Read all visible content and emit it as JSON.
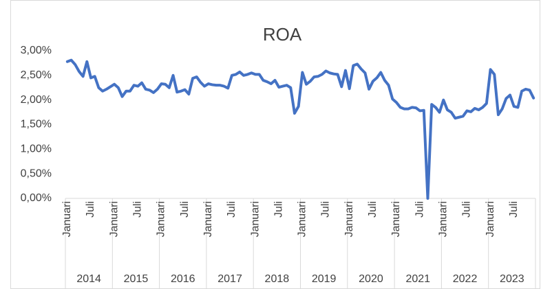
{
  "chart_data": {
    "type": "line",
    "title": "ROA",
    "categories": [
      "Januari",
      null,
      null,
      null,
      null,
      null,
      "Juli",
      null,
      null,
      null,
      null,
      null,
      "Januari",
      null,
      null,
      null,
      null,
      null,
      "Juli",
      null,
      null,
      null,
      null,
      null,
      "Januari",
      null,
      null,
      null,
      null,
      null,
      "Juli",
      null,
      null,
      null,
      null,
      null,
      "Januari",
      null,
      null,
      null,
      null,
      null,
      "Juli",
      null,
      null,
      null,
      null,
      null,
      "Januari",
      null,
      null,
      null,
      null,
      null,
      "Juli",
      null,
      null,
      null,
      null,
      null,
      "Januari",
      null,
      null,
      null,
      null,
      null,
      "Juli",
      null,
      null,
      null,
      null,
      null,
      "Januari",
      null,
      null,
      null,
      null,
      null,
      "Juli",
      null,
      null,
      null,
      null,
      null,
      "Januari",
      null,
      null,
      null,
      null,
      null,
      "Juli",
      null,
      null,
      null,
      null,
      null,
      "Januari",
      null,
      null,
      null,
      null,
      null,
      "Juli",
      null,
      null,
      null,
      null,
      null,
      "Januari",
      null,
      null,
      null,
      null,
      null,
      "Juli",
      null,
      null,
      null,
      null,
      null
    ],
    "years": [
      "2014",
      "2015",
      "2016",
      "2017",
      "2018",
      "2019",
      "2020",
      "2021",
      "2022",
      "2023"
    ],
    "values": [
      2.78,
      2.81,
      2.72,
      2.58,
      2.48,
      2.78,
      2.45,
      2.48,
      2.25,
      2.18,
      2.22,
      2.27,
      2.32,
      2.25,
      2.07,
      2.18,
      2.18,
      2.3,
      2.28,
      2.35,
      2.22,
      2.2,
      2.15,
      2.22,
      2.33,
      2.32,
      2.25,
      2.5,
      2.16,
      2.18,
      2.21,
      2.12,
      2.44,
      2.47,
      2.36,
      2.28,
      2.33,
      2.31,
      2.3,
      2.3,
      2.28,
      2.24,
      2.5,
      2.52,
      2.57,
      2.5,
      2.52,
      2.55,
      2.52,
      2.52,
      2.4,
      2.37,
      2.33,
      2.4,
      2.26,
      2.28,
      2.3,
      2.25,
      1.73,
      1.87,
      2.56,
      2.32,
      2.38,
      2.47,
      2.48,
      2.52,
      2.59,
      2.55,
      2.53,
      2.52,
      2.27,
      2.6,
      2.23,
      2.7,
      2.73,
      2.63,
      2.55,
      2.22,
      2.38,
      2.45,
      2.56,
      2.4,
      2.3,
      2.02,
      1.95,
      1.85,
      1.82,
      1.82,
      1.85,
      1.84,
      1.78,
      1.79,
      0.0,
      1.91,
      1.85,
      1.75,
      2.0,
      1.8,
      1.75,
      1.63,
      1.65,
      1.67,
      1.78,
      1.76,
      1.83,
      1.8,
      1.85,
      1.93,
      2.62,
      2.52,
      1.7,
      1.82,
      2.03,
      2.1,
      1.87,
      1.85,
      2.18,
      2.22,
      2.2,
      2.04
    ],
    "color": "#4472c4",
    "ylim": [
      0,
      3
    ],
    "yticks": [
      {
        "value": 0,
        "label": "0,00%"
      },
      {
        "value": 0.5,
        "label": "0,50%"
      },
      {
        "value": 1,
        "label": "1,00%"
      },
      {
        "value": 1.5,
        "label": "1,50%"
      },
      {
        "value": 2,
        "label": "2,00%"
      },
      {
        "value": 2.5,
        "label": "2,50%"
      },
      {
        "value": 3,
        "label": "3,00%"
      }
    ]
  }
}
